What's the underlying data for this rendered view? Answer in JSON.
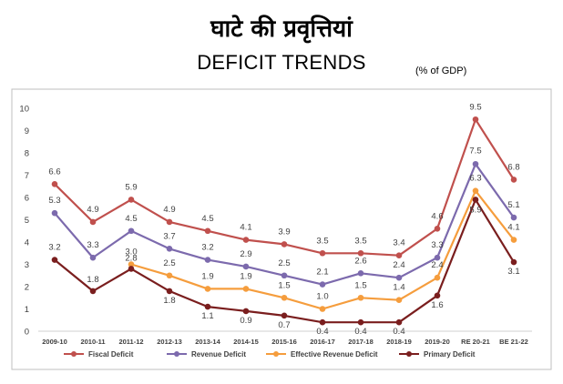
{
  "header": {
    "title_hindi": "घाटे की प्रवृत्तियां",
    "title_english": "DEFICIT TRENDS",
    "unit": "(% of GDP)"
  },
  "chart_data": {
    "type": "line",
    "title": "DEFICIT TRENDS",
    "categories": [
      "2009-10",
      "2010-11",
      "2011-12",
      "2012-13",
      "2013-14",
      "2014-15",
      "2015-16",
      "2016-17",
      "2017-18",
      "2018-19",
      "2019-20",
      "RE 20-21",
      "BE 21-22"
    ],
    "ylim": [
      0,
      10
    ],
    "yticks": [
      0,
      1,
      2,
      3,
      4,
      5,
      6,
      7,
      8,
      9,
      10
    ],
    "grid": false,
    "legend": "bottom",
    "series": [
      {
        "name": "Fiscal Deficit",
        "color": "#c0504d",
        "values": [
          6.6,
          4.9,
          5.9,
          4.9,
          4.5,
          4.1,
          3.9,
          3.5,
          3.5,
          3.4,
          4.6,
          9.5,
          6.8
        ],
        "labels": [
          6.6,
          4.9,
          5.9,
          4.9,
          4.5,
          4.1,
          3.9,
          3.5,
          3.5,
          3.4,
          4.6,
          9.5,
          6.8
        ]
      },
      {
        "name": "Revenue Deficit",
        "color": "#7c6aad",
        "values": [
          5.3,
          3.3,
          4.5,
          3.7,
          3.2,
          2.9,
          2.5,
          2.1,
          2.6,
          2.4,
          3.3,
          7.5,
          5.1
        ],
        "labels": [
          5.3,
          3.3,
          4.5,
          3.7,
          3.2,
          2.9,
          2.5,
          2.1,
          2.6,
          2.4,
          3.3,
          7.5,
          5.1
        ]
      },
      {
        "name": "Effective Revenue Deficit",
        "color": "#f59d3d",
        "values": [
          null,
          null,
          3.0,
          2.5,
          1.9,
          1.9,
          1.5,
          1.0,
          1.5,
          1.4,
          2.4,
          6.3,
          4.1
        ],
        "labels": [
          null,
          null,
          3.0,
          2.5,
          1.9,
          1.9,
          1.5,
          1.0,
          1.5,
          1.4,
          2.4,
          6.3,
          4.1
        ]
      },
      {
        "name": "Primary Deficit",
        "color": "#7a1e1e",
        "values": [
          3.2,
          1.8,
          2.8,
          1.8,
          1.1,
          0.9,
          0.7,
          0.4,
          0.4,
          0.4,
          1.6,
          5.9,
          3.1
        ],
        "labels": [
          3.2,
          1.8,
          2.8,
          1.8,
          1.1,
          0.9,
          0.7,
          0.4,
          0.4,
          0.4,
          1.6,
          5.9,
          3.1
        ]
      }
    ]
  }
}
